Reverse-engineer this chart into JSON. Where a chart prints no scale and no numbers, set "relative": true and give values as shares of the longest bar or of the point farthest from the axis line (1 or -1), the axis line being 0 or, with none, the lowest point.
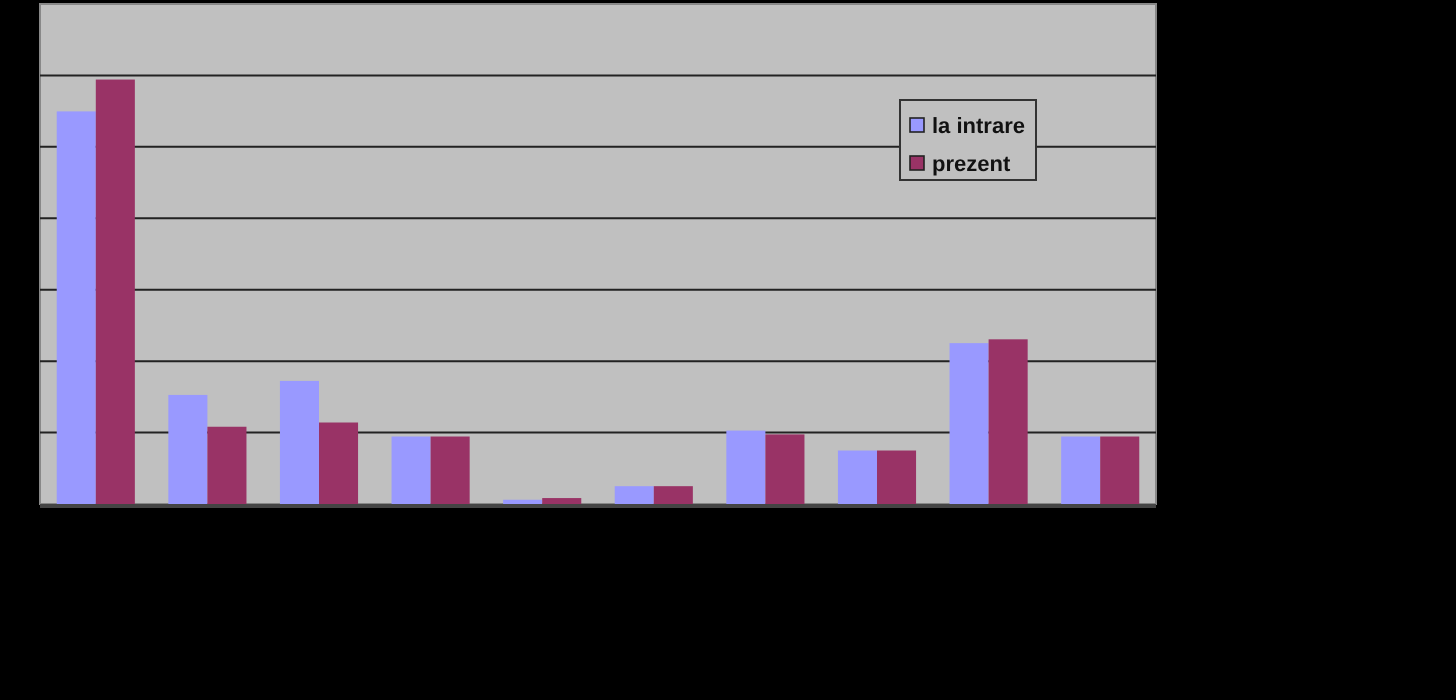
{
  "chart_data": {
    "type": "bar",
    "relative": true,
    "categories": [
      null,
      null,
      null,
      null,
      null,
      null,
      null,
      null,
      null,
      null
    ],
    "series": [
      {
        "name": "la intrare",
        "color": "#9999ff",
        "values": [
          0.925,
          0.257,
          0.29,
          0.159,
          0.01,
          0.042,
          0.173,
          0.126,
          0.379,
          0.159
        ]
      },
      {
        "name": "prezent",
        "color": "#993366",
        "values": [
          1,
          0.182,
          0.192,
          0.159,
          0.014,
          0.042,
          0.164,
          0.126,
          0.388,
          0.159
        ]
      }
    ],
    "grid": true,
    "legend": "top right"
  }
}
